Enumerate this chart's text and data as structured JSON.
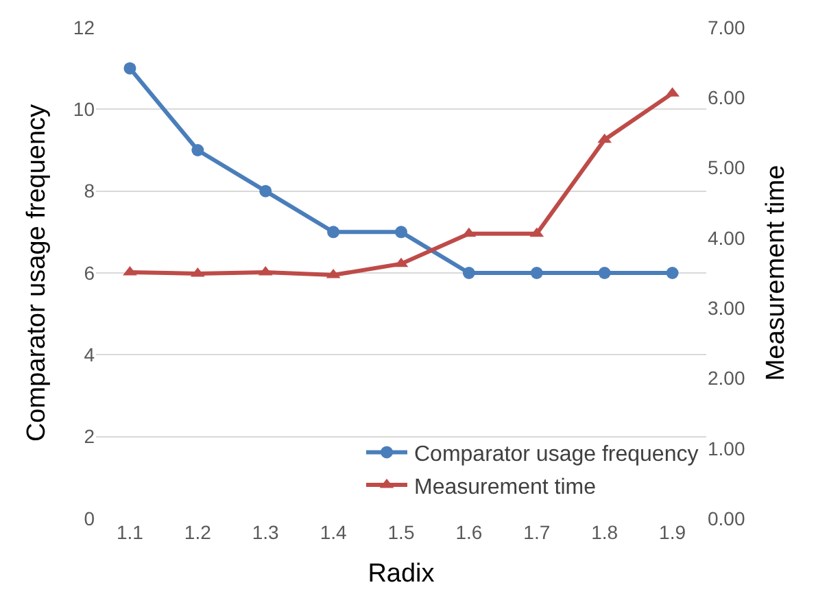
{
  "chart_data": {
    "type": "line",
    "xlabel": "Radix",
    "ylabel": "Comparator usage frequency",
    "y2label": "Measurement time",
    "categories": [
      "1.1",
      "1.2",
      "1.3",
      "1.4",
      "1.5",
      "1.6",
      "1.7",
      "1.8",
      "1.9"
    ],
    "series": [
      {
        "name": "Comparator usage frequency",
        "color": "#4a7ebb",
        "marker": "circle",
        "values": [
          11,
          9,
          8,
          7,
          7,
          6,
          6,
          6,
          6
        ]
      },
      {
        "name": "Measurement time",
        "color": "#be4b48",
        "marker": "triangle",
        "axis": "y2",
        "values": [
          3.51,
          3.49,
          3.51,
          3.47,
          3.63,
          4.06,
          4.06,
          5.4,
          6.06
        ]
      }
    ],
    "ylim": [
      0,
      12
    ],
    "yticks": [
      0,
      2,
      4,
      6,
      8,
      10,
      12
    ],
    "y2lim": [
      0,
      7
    ],
    "y2ticks": [
      {
        "value": 0,
        "label": "0.00"
      },
      {
        "value": 1,
        "label": "1.00"
      },
      {
        "value": 2,
        "label": "2.00"
      },
      {
        "value": 3,
        "label": "3.00"
      },
      {
        "value": 4,
        "label": "4.00"
      },
      {
        "value": 5,
        "label": "5.00"
      },
      {
        "value": 6,
        "label": "6.00"
      },
      {
        "value": 7,
        "label": "7.00"
      }
    ],
    "grid": "y",
    "legend": "bottom right",
    "line_style": "solid"
  }
}
